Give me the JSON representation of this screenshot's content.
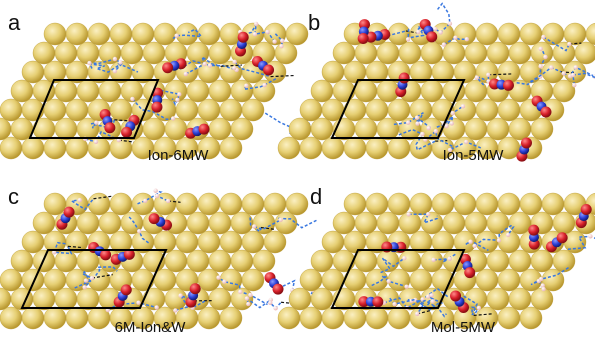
{
  "figure": {
    "panels": [
      {
        "letter": "a",
        "caption": "Ion-6MW"
      },
      {
        "letter": "b",
        "caption": "Ion-5MW"
      },
      {
        "letter": "c",
        "caption": "6M-Ion&W"
      },
      {
        "letter": "d",
        "caption": "Mol-5MW"
      }
    ],
    "colors": {
      "surface_atom": "#e6cf73",
      "surface_atom_shadow": "#b9982f",
      "oxygen": "#d8202a",
      "nitrogen": "#2b3fd6",
      "hydrogen": "#f0c8c8",
      "hbond_blue": "#3a78e0",
      "hbond_black": "#111111",
      "cell_outline": "#000000"
    }
  }
}
